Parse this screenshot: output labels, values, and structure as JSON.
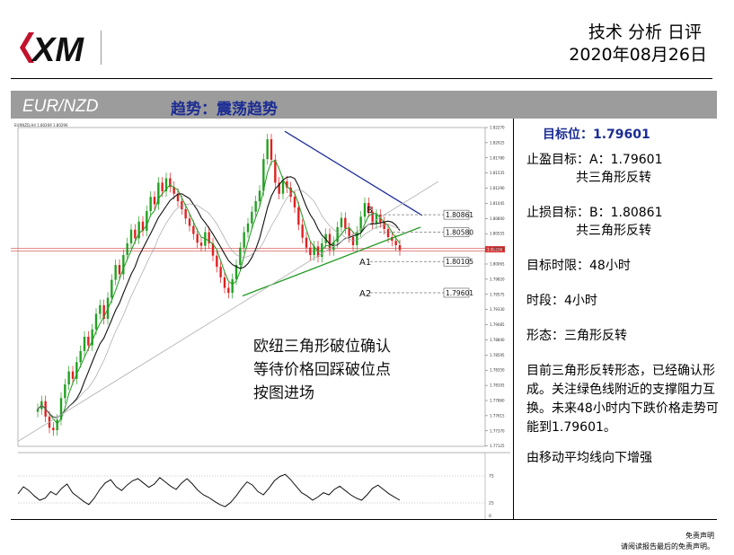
{
  "header": {
    "title": "技术 分析 日评",
    "date": "2020年08月26日"
  },
  "logo_text": "XM",
  "band": {
    "pair": "EUR/NZD",
    "trend": "趋势：震荡趋势"
  },
  "sidebar": {
    "target": "目标位：1.79601",
    "tp_line1": "止盈目标：A：1.79601",
    "tp_line2": "共三角形反转",
    "sl_line1": "止损目标：B：1.80861",
    "sl_line2": "共三角形反转",
    "horizon": "目标时限：48小时",
    "timeframe": "时段：4小时",
    "pattern": "形态：三角形反转",
    "description": "目前三角形反转形态，已经确认形成。关注绿色线附近的支撑阻力互换。未来48小时内下跌价格走势可能到1.79601。",
    "ma_note": "由移动平均线向下增强"
  },
  "footer": {
    "line1": "免责声明",
    "line2": "请阅读报告最后的免责声明。"
  },
  "chart_data": {
    "type": "candlestick",
    "symbol": "EUR/NZD",
    "timeframe": "H4",
    "ylim": [
      1.7712,
      1.8227
    ],
    "y_ticks": [
      "1.82270",
      "1.82025",
      "1.81780",
      "1.81535",
      "1.81290",
      "1.81045",
      "1.80800",
      "1.80555",
      "1.80310",
      "1.80065",
      "1.79820",
      "1.79575",
      "1.79330",
      "1.79085",
      "1.78840",
      "1.78595",
      "1.78350",
      "1.78105",
      "1.77860",
      "1.77615",
      "1.77370",
      "1.77125"
    ],
    "current_price": "1.80296",
    "header_text": "EURNZD,H4 1.80269 1.80296",
    "annotation": "欧纽三角形破位确认\n等待价格回踩破位点\n按图进场",
    "levels": [
      {
        "label": "B",
        "price": 1.80861,
        "text": "1.80861"
      },
      {
        "label": "",
        "price": 1.8058,
        "text": "1.80580"
      },
      {
        "label": "A1",
        "price": 1.80105,
        "text": "1.80105"
      },
      {
        "label": "A2",
        "price": 1.79601,
        "text": "1.79601"
      }
    ],
    "trendlines": [
      {
        "name": "resistance",
        "color": "#1e2d9a"
      },
      {
        "name": "support",
        "color": "#1f9a1f"
      },
      {
        "name": "long-support",
        "color": "#b5b5b5"
      }
    ],
    "closes": [
      1.7772,
      1.7785,
      1.776,
      1.7742,
      1.7738,
      1.7755,
      1.779,
      1.7812,
      1.7833,
      1.7821,
      1.7848,
      1.7866,
      1.7889,
      1.7875,
      1.7901,
      1.7926,
      1.794,
      1.7918,
      1.7952,
      1.7981,
      1.8005,
      1.799,
      1.8021,
      1.804,
      1.8062,
      1.8048,
      1.8075,
      1.806,
      1.8092,
      1.8115,
      1.8103,
      1.8138,
      1.8124,
      1.8145,
      1.8131,
      1.812,
      1.8108,
      1.8095,
      1.808,
      1.8068,
      1.8055,
      1.8041,
      1.8036,
      1.8058,
      1.804,
      1.802,
      1.8002,
      1.7985,
      1.7968,
      1.796,
      1.7982,
      1.8005,
      1.8033,
      1.8058,
      1.8072,
      1.8091,
      1.8108,
      1.8125,
      1.8176,
      1.8208,
      1.8175,
      1.8138,
      1.812,
      1.814,
      1.813,
      1.8115,
      1.8098,
      1.807,
      1.8049,
      1.8033,
      1.8021,
      1.8035,
      1.8018,
      1.804,
      1.8055,
      1.8029,
      1.8042,
      1.8066,
      1.8081,
      1.8064,
      1.805,
      1.8037,
      1.8059,
      1.8083,
      1.8105,
      1.8091,
      1.8072,
      1.8086,
      1.8074,
      1.8063,
      1.805,
      1.8044,
      1.8037,
      1.8029
    ],
    "oscillator": {
      "levels": [
        75,
        25
      ],
      "ylim": [
        0,
        100
      ],
      "values": [
        42,
        55,
        48,
        38,
        30,
        34,
        46,
        40,
        52,
        60,
        44,
        36,
        28,
        22,
        34,
        50,
        62,
        68,
        55,
        48,
        58,
        66,
        70,
        62,
        54,
        60,
        72,
        64,
        56,
        50,
        62,
        70,
        60,
        48,
        40,
        35,
        28,
        22,
        18,
        26,
        38,
        52,
        64,
        58,
        46,
        40,
        52,
        66,
        74,
        78,
        68,
        56,
        44,
        38,
        30,
        36,
        44,
        40,
        50,
        56,
        48,
        40,
        34,
        30,
        40,
        52,
        58,
        50,
        42,
        36,
        30
      ]
    }
  }
}
